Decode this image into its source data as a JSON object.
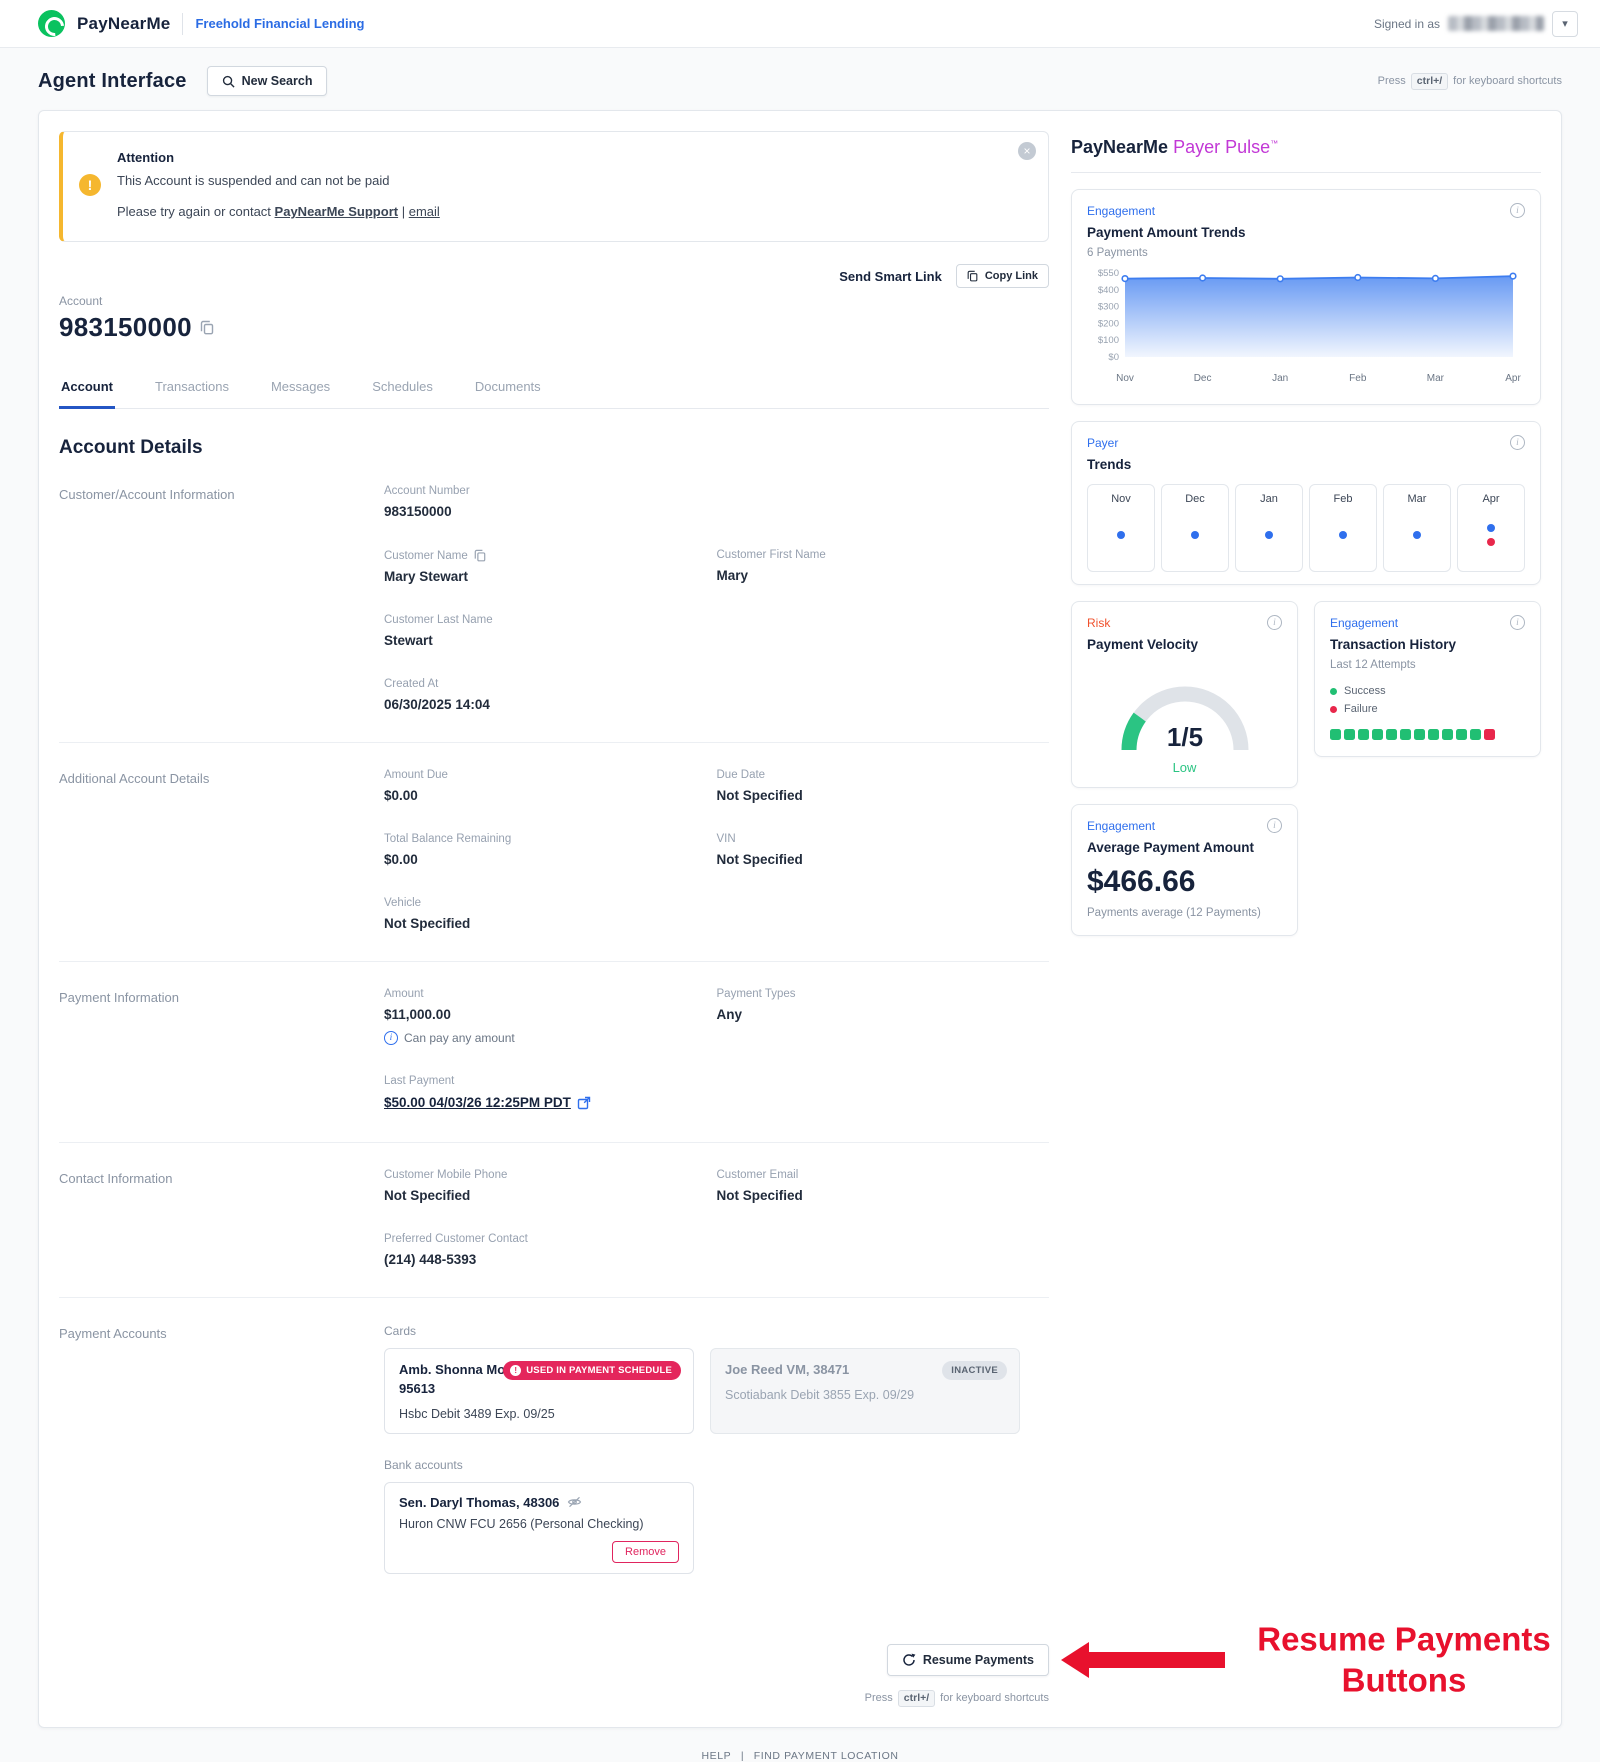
{
  "header": {
    "brand": "PayNearMe",
    "org": "Freehold Financial Lending",
    "signed_in_label": "Signed in as"
  },
  "icons": {
    "close": "×",
    "warning": "!",
    "info": "i",
    "chevron_down": "▾",
    "divider": "|"
  },
  "shortcuts": {
    "press": "Press",
    "key": "ctrl+/",
    "suffix": "for keyboard shortcuts"
  },
  "toolbar": {
    "title": "Agent Interface",
    "new_search": "New Search"
  },
  "alert": {
    "title": "Attention",
    "message": "This Account is suspended and can not be paid",
    "retry_prefix": "Please try again or contact",
    "support_link": "PayNearMe Support",
    "email_link": "email"
  },
  "smart_link": {
    "send": "Send Smart Link",
    "copy": "Copy Link"
  },
  "account": {
    "label": "Account",
    "number": "983150000"
  },
  "active_tab": "Account",
  "tabs": [
    {
      "label": "Account"
    },
    {
      "label": "Transactions"
    },
    {
      "label": "Messages"
    },
    {
      "label": "Schedules"
    },
    {
      "label": "Documents"
    }
  ],
  "details": {
    "heading": "Account Details",
    "customer_section": {
      "title": "Customer/Account Information",
      "account_number": {
        "label": "Account Number",
        "value": "983150000"
      },
      "customer_name": {
        "label": "Customer Name",
        "value": "Mary Stewart"
      },
      "first_name": {
        "label": "Customer First Name",
        "value": "Mary"
      },
      "last_name": {
        "label": "Customer Last Name",
        "value": "Stewart"
      },
      "created_at": {
        "label": "Created At",
        "value": "06/30/2025 14:04"
      }
    },
    "additional_section": {
      "title": "Additional Account Details",
      "amount_due": {
        "label": "Amount Due",
        "value": "$0.00"
      },
      "due_date": {
        "label": "Due Date",
        "value": "Not Specified"
      },
      "total_balance": {
        "label": "Total Balance Remaining",
        "value": "$0.00"
      },
      "vin": {
        "label": "VIN",
        "value": "Not Specified"
      },
      "vehicle": {
        "label": "Vehicle",
        "value": "Not Specified"
      }
    },
    "payment_section": {
      "title": "Payment Information",
      "amount": {
        "label": "Amount",
        "value": "$11,000.00",
        "note": "Can pay any amount"
      },
      "payment_types": {
        "label": "Payment Types",
        "value": "Any"
      },
      "last_payment": {
        "label": "Last Payment",
        "value": "$50.00 04/03/26 12:25PM PDT"
      }
    },
    "contact_section": {
      "title": "Contact Information",
      "mobile": {
        "label": "Customer Mobile Phone",
        "value": "Not Specified"
      },
      "email": {
        "label": "Customer Email",
        "value": "Not Specified"
      },
      "preferred": {
        "label": "Preferred Customer Contact",
        "value": "(214) 448-5393"
      }
    },
    "accounts_section": {
      "title": "Payment Accounts",
      "cards_label": "Cards",
      "card_active": {
        "name": "Amb. Shonna Morgan, 95613",
        "badge": "USED IN PAYMENT SCHEDULE",
        "detail": "Hsbc Debit 3489 Exp. 09/25"
      },
      "card_inactive": {
        "name": "Joe Reed VM, 38471",
        "badge": "INACTIVE",
        "detail": "Scotiabank Debit 3855 Exp. 09/29"
      },
      "bank_label": "Bank accounts",
      "bank_account": {
        "name": "Sen. Daryl Thomas, 48306",
        "detail": "Huron CNW FCU 2656 (Personal Checking)",
        "remove": "Remove"
      }
    }
  },
  "actions": {
    "resume_payments": "Resume Payments"
  },
  "annotation": {
    "line1": "Resume Payments",
    "line2": "Buttons",
    "color": "#e8112d"
  },
  "pulse": {
    "brand": "PayNearMe",
    "product": "Payer Pulse",
    "tm": "™",
    "payment_trends": {
      "category": "Engagement",
      "title": "Payment Amount Trends",
      "subtitle": "6 Payments"
    },
    "trends": {
      "category": "Payer",
      "title": "Trends",
      "months": [
        {
          "label": "Nov",
          "dots": [
            "blue"
          ]
        },
        {
          "label": "Dec",
          "dots": [
            "blue"
          ]
        },
        {
          "label": "Jan",
          "dots": [
            "blue"
          ]
        },
        {
          "label": "Feb",
          "dots": [
            "blue"
          ]
        },
        {
          "label": "Mar",
          "dots": [
            "blue"
          ]
        },
        {
          "label": "Apr",
          "dots": [
            "blue",
            "red"
          ]
        }
      ]
    },
    "velocity": {
      "category": "Risk",
      "title": "Payment Velocity",
      "value": "1/5",
      "level": "Low",
      "ratio": 0.2
    },
    "history": {
      "category": "Engagement",
      "title": "Transaction History",
      "subtitle": "Last 12 Attempts",
      "legend_success": "Success",
      "legend_failure": "Failure",
      "attempts": [
        "success",
        "success",
        "success",
        "success",
        "success",
        "success",
        "success",
        "success",
        "success",
        "success",
        "success",
        "failure"
      ]
    },
    "average": {
      "category": "Engagement",
      "title": "Average Payment Amount",
      "amount": "$466.66",
      "note": "Payments average (12 Payments)"
    }
  },
  "chart_data": {
    "type": "area",
    "title": "Payment Amount Trends",
    "x": [
      "Nov",
      "Dec",
      "Jan",
      "Feb",
      "Mar",
      "Apr"
    ],
    "values": [
      500,
      505,
      498,
      510,
      502,
      522
    ],
    "y_ticks": [
      "$550",
      "$400",
      "$300",
      "$200",
      "$100",
      "$0"
    ],
    "ylim": [
      0,
      550
    ],
    "line_color": "#3d7df0",
    "legend_position": "none",
    "grid": false
  },
  "footer": {
    "help": "HELP",
    "find_location": "FIND PAYMENT LOCATION"
  },
  "colors": {
    "accent_blue": "#2f6fed",
    "brand_green": "#0ac25f",
    "pulse_magenta": "#c238d6",
    "risk_orange": "#f0512d",
    "success_green": "#21bf73",
    "failure_red": "#e8274b",
    "warning_yellow": "#f5b72f",
    "annotation_red": "#e8112d"
  }
}
